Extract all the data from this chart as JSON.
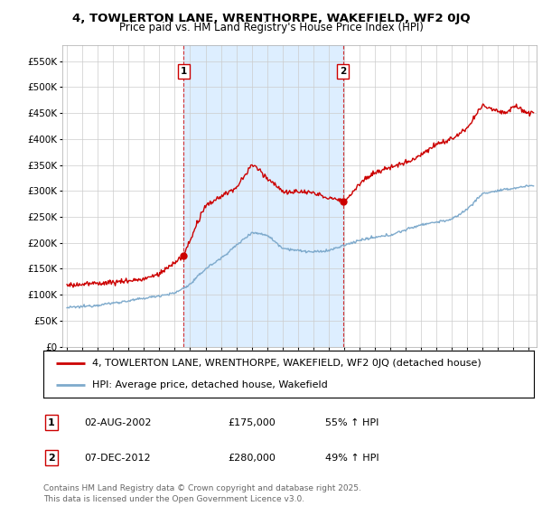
{
  "title": "4, TOWLERTON LANE, WRENTHORPE, WAKEFIELD, WF2 0JQ",
  "subtitle": "Price paid vs. HM Land Registry's House Price Index (HPI)",
  "ylabel_ticks": [
    "£0",
    "£50K",
    "£100K",
    "£150K",
    "£200K",
    "£250K",
    "£300K",
    "£350K",
    "£400K",
    "£450K",
    "£500K",
    "£550K"
  ],
  "ytick_vals": [
    0,
    50000,
    100000,
    150000,
    200000,
    250000,
    300000,
    350000,
    400000,
    450000,
    500000,
    550000
  ],
  "ylim": [
    0,
    580000
  ],
  "xlim_start": 1994.7,
  "xlim_end": 2025.5,
  "sale1_x": 2002.58,
  "sale1_y": 175000,
  "sale2_x": 2012.92,
  "sale2_y": 280000,
  "sale1_label": "1",
  "sale2_label": "2",
  "sale1_date": "02-AUG-2002",
  "sale1_price": "£175,000",
  "sale1_hpi": "55% ↑ HPI",
  "sale2_date": "07-DEC-2012",
  "sale2_price": "£280,000",
  "sale2_hpi": "49% ↑ HPI",
  "red_color": "#cc0000",
  "blue_color": "#7eaacc",
  "vline_color": "#cc0000",
  "background_color": "#ffffff",
  "plot_bg_color": "#ffffff",
  "shade_color": "#ddeeff",
  "grid_color": "#cccccc",
  "legend_line1": "4, TOWLERTON LANE, WRENTHORPE, WAKEFIELD, WF2 0JQ (detached house)",
  "legend_line2": "HPI: Average price, detached house, Wakefield",
  "footer": "Contains HM Land Registry data © Crown copyright and database right 2025.\nThis data is licensed under the Open Government Licence v3.0.",
  "title_fontsize": 9.5,
  "subtitle_fontsize": 8.5,
  "tick_fontsize": 7.5,
  "legend_fontsize": 8.0,
  "footer_fontsize": 6.5,
  "hpi_anchors_x": [
    1995,
    1996,
    1997,
    1998,
    1999,
    2000,
    2001,
    2002,
    2003,
    2004,
    2005,
    2006,
    2007,
    2008,
    2009,
    2010,
    2011,
    2012,
    2013,
    2014,
    2015,
    2016,
    2017,
    2018,
    2019,
    2020,
    2021,
    2022,
    2023,
    2024,
    2025
  ],
  "hpi_anchors_y": [
    75000,
    77000,
    80000,
    84000,
    88000,
    93000,
    98000,
    103000,
    120000,
    150000,
    170000,
    195000,
    220000,
    215000,
    190000,
    185000,
    182000,
    185000,
    195000,
    205000,
    210000,
    215000,
    225000,
    235000,
    240000,
    245000,
    265000,
    295000,
    300000,
    305000,
    310000
  ],
  "prop_anchors_x": [
    1995,
    1996,
    1997,
    1998,
    1999,
    2000,
    2001,
    2002.58,
    2003.5,
    2004,
    2005,
    2006,
    2007,
    2007.5,
    2008,
    2009,
    2009.5,
    2010,
    2011,
    2012.92,
    2013.5,
    2014,
    2015,
    2016,
    2017,
    2018,
    2019,
    2020,
    2021,
    2022,
    2022.5,
    2023,
    2023.5,
    2024,
    2025
  ],
  "prop_anchors_y": [
    118000,
    120000,
    122000,
    124000,
    127000,
    130000,
    140000,
    175000,
    240000,
    270000,
    290000,
    305000,
    350000,
    340000,
    325000,
    300000,
    295000,
    300000,
    295000,
    280000,
    295000,
    315000,
    335000,
    345000,
    355000,
    370000,
    390000,
    400000,
    420000,
    465000,
    460000,
    455000,
    450000,
    465000,
    450000
  ]
}
